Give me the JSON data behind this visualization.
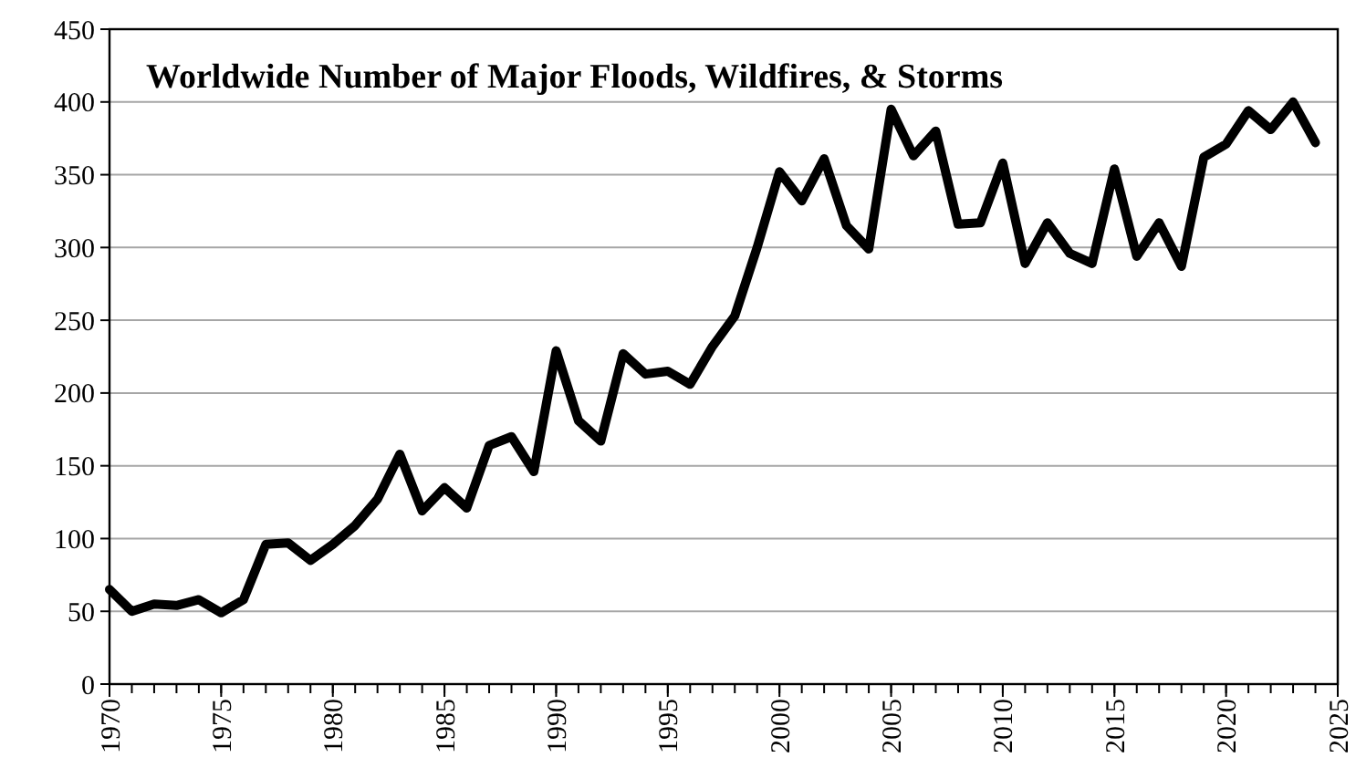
{
  "chart_data": {
    "type": "line",
    "title": "Worldwide Number of Major Floods, Wildfires, & Storms",
    "x": [
      1970,
      1971,
      1972,
      1973,
      1974,
      1975,
      1976,
      1977,
      1978,
      1979,
      1980,
      1981,
      1982,
      1983,
      1984,
      1985,
      1986,
      1987,
      1988,
      1989,
      1990,
      1991,
      1992,
      1993,
      1994,
      1995,
      1996,
      1997,
      1998,
      1999,
      2000,
      2001,
      2002,
      2003,
      2004,
      2005,
      2006,
      2007,
      2008,
      2009,
      2010,
      2011,
      2012,
      2013,
      2014,
      2015,
      2016,
      2017,
      2018,
      2019,
      2020,
      2021,
      2022,
      2023,
      2024
    ],
    "series": [
      {
        "color": "#000000",
        "values": [
          65,
          50,
          55,
          54,
          58,
          49,
          58,
          96,
          97,
          85,
          96,
          109,
          127,
          158,
          119,
          135,
          121,
          164,
          170,
          146,
          229,
          181,
          167,
          227,
          213,
          215,
          206,
          232,
          253,
          300,
          352,
          332,
          361,
          315,
          299,
          395,
          363,
          380,
          316,
          317,
          358,
          289,
          317,
          296,
          289,
          354,
          294,
          317,
          287,
          362,
          371,
          394,
          381,
          400,
          372
        ]
      }
    ],
    "xlim": [
      1970,
      2025
    ],
    "xticks": [
      1970,
      1975,
      1980,
      1985,
      1990,
      1995,
      2000,
      2005,
      2010,
      2015,
      2020,
      2025
    ],
    "ylim": [
      0,
      450
    ],
    "yticks": [
      0,
      50,
      100,
      150,
      200,
      250,
      300,
      350,
      400,
      450
    ],
    "grid": "y",
    "marker": "none",
    "line_style": "solid"
  }
}
